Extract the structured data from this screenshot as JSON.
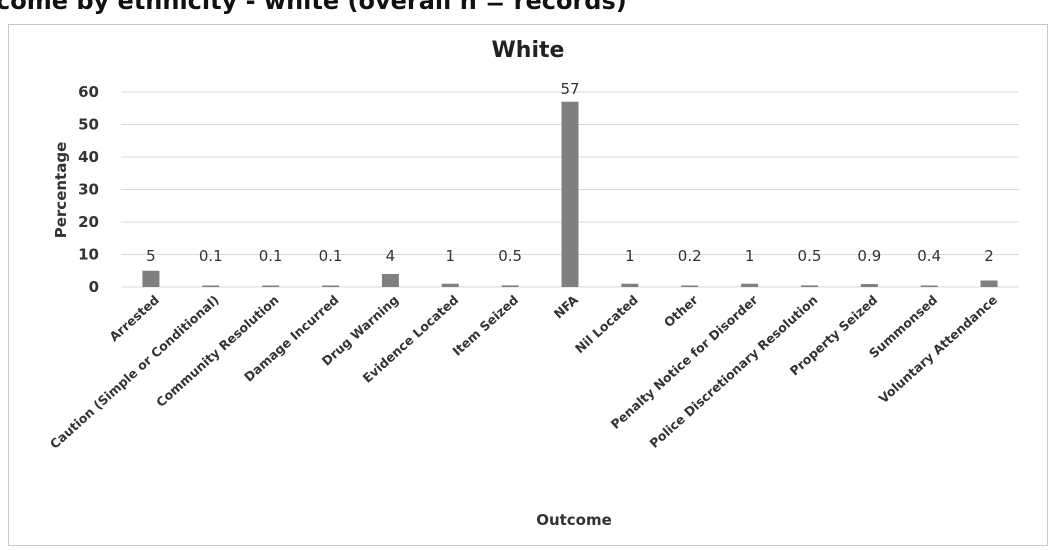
{
  "heading": "come by ethnicity - white (overall n = records)",
  "chart_data": {
    "type": "bar",
    "title": "White",
    "xlabel": "Outcome",
    "ylabel": "Percentage",
    "ylim": [
      0,
      60
    ],
    "yticks": [
      0,
      10,
      20,
      30,
      40,
      50,
      60
    ],
    "grid": true,
    "legend": "none",
    "categories": [
      "Arrested",
      "Caution (Simple or Conditional)",
      "Community Resolution",
      "Damage Incurred",
      "Drug Warning",
      "Evidence Located",
      "Item Seized",
      "NFA",
      "Nil Located",
      "Other",
      "Penalty Notice for Disorder",
      "Police Discretionary Resolution",
      "Property Seized",
      "Summonsed",
      "Voluntary Attendance"
    ],
    "values": [
      5,
      0.1,
      0.1,
      0.1,
      4,
      1,
      0.5,
      57,
      1,
      0.2,
      1,
      0.5,
      0.9,
      0.4,
      2
    ],
    "data_labels": [
      "5",
      "0.1",
      "0.1",
      "0.1",
      "4",
      "1",
      "0.5",
      "57",
      "1",
      "0.2",
      "1",
      "0.5",
      "0.9",
      "0.4",
      "2"
    ],
    "bar_color": "#7f7f7f",
    "grid_color": "#d9d9d9"
  }
}
